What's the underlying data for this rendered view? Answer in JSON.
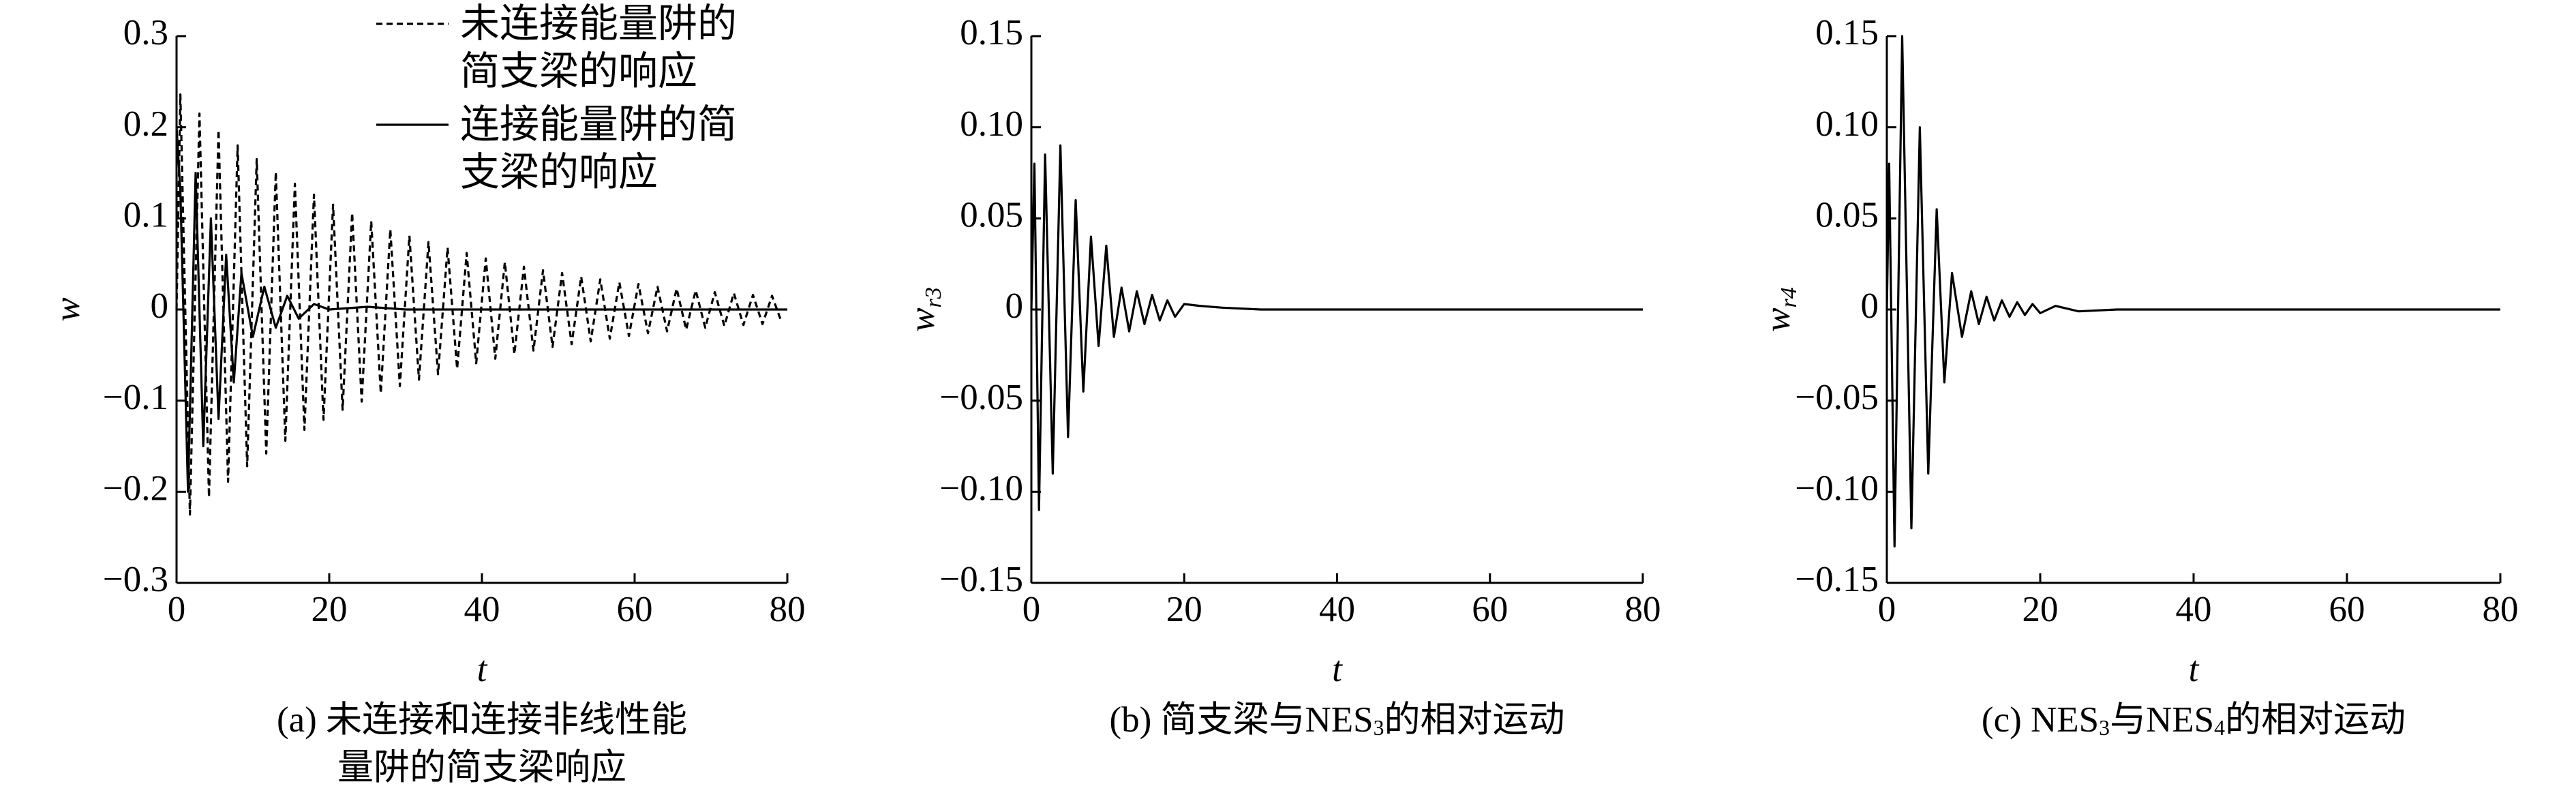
{
  "chart_data": [
    {
      "type": "line",
      "ylabel": "w",
      "xlabel": "t",
      "caption": [
        {
          "text": "(a) 未连接和连接非线性能量阱的简支梁响应"
        }
      ],
      "xlim": [
        0,
        80
      ],
      "xticks": [
        0,
        20,
        40,
        60,
        80
      ],
      "ylim": [
        -0.3,
        0.3
      ],
      "yticks": [
        {
          "value": -0.3,
          "label": "−0.3"
        },
        {
          "value": -0.2,
          "label": "−0.2"
        },
        {
          "value": -0.1,
          "label": "−0.1"
        },
        0,
        0.1,
        0.2,
        0.3
      ],
      "series": [
        {
          "name": "未连接能量阱的简支梁的响应",
          "color": "#000000",
          "linestyle": "dashed",
          "x": [
            0,
            0.5,
            1.75,
            3,
            4.25,
            5.5,
            6.75,
            8,
            9.25,
            10.5,
            11.75,
            13,
            14.25,
            15.5,
            16.75,
            18,
            19.25,
            20.5,
            21.75,
            23,
            24.25,
            25.5,
            26.75,
            28,
            29.25,
            30.5,
            31.75,
            33,
            34.25,
            35.5,
            36.75,
            38,
            39.25,
            40.5,
            41.75,
            43,
            44.25,
            45.5,
            46.75,
            48,
            49.25,
            50.5,
            51.75,
            53,
            54.25,
            55.5,
            56.75,
            58,
            59.25,
            60.5,
            61.75,
            63,
            64.25,
            65.5,
            66.75,
            68,
            69.25,
            70.5,
            71.75,
            73,
            74.25,
            75.5,
            76.75,
            78,
            79.25
          ],
          "values": [
            0,
            0.236,
            -0.225,
            0.215,
            -0.206,
            0.197,
            -0.189,
            0.18,
            -0.172,
            0.165,
            -0.158,
            0.151,
            -0.144,
            0.138,
            -0.132,
            0.126,
            -0.121,
            0.115,
            -0.11,
            0.106,
            -0.101,
            0.097,
            -0.092,
            0.088,
            -0.084,
            0.081,
            -0.077,
            0.074,
            -0.071,
            0.068,
            -0.065,
            0.062,
            -0.059,
            0.056,
            -0.054,
            0.052,
            -0.049,
            0.047,
            -0.045,
            0.043,
            -0.041,
            0.04,
            -0.038,
            0.036,
            -0.035,
            0.033,
            -0.032,
            0.03,
            -0.029,
            0.028,
            -0.026,
            0.025,
            -0.024,
            0.023,
            -0.022,
            0.021,
            -0.02,
            0.019,
            -0.018,
            0.018,
            -0.017,
            0.016,
            -0.016,
            0.015,
            -0.014
          ]
        },
        {
          "name": "连接能量阱的简支梁的响应",
          "color": "#000000",
          "linestyle": "solid",
          "x": [
            0,
            0.5,
            1.5,
            2.5,
            3.5,
            4.5,
            5.5,
            6.5,
            7.5,
            8.5,
            10,
            11.5,
            13,
            14.5,
            16,
            18,
            20,
            25,
            30,
            80
          ],
          "values": [
            0.2,
            0.13,
            -0.2,
            0.15,
            -0.15,
            0.1,
            -0.12,
            0.06,
            -0.08,
            0.04,
            -0.03,
            0.025,
            -0.02,
            0.015,
            -0.01,
            0.006,
            0,
            0.003,
            0,
            0
          ]
        }
      ]
    },
    {
      "type": "line",
      "ylabel": "w",
      "ylabel_sub": "r3",
      "xlabel": "t",
      "caption": [
        {
          "text": "(b) 简支梁与NES"
        },
        {
          "text": "3",
          "sub": true
        },
        {
          "text": "的相对运动"
        }
      ],
      "xlim": [
        0,
        80
      ],
      "xticks": [
        0,
        20,
        40,
        60,
        80
      ],
      "ylim": [
        -0.15,
        0.15
      ],
      "yticks": [
        {
          "value": -0.15,
          "label": "−0.15"
        },
        {
          "value": -0.1,
          "label": "−0.10"
        },
        {
          "value": -0.05,
          "label": "−0.05"
        },
        0,
        {
          "value": 0.05,
          "label": "0.05"
        },
        {
          "value": 0.1,
          "label": "0.10"
        },
        0.15
      ],
      "series": [
        {
          "color": "#000000",
          "linestyle": "solid",
          "x": [
            0,
            0.4,
            1,
            1.8,
            2.8,
            3.8,
            4.8,
            5.8,
            6.8,
            7.8,
            8.8,
            9.8,
            10.8,
            11.8,
            12.8,
            13.8,
            14.8,
            15.8,
            16.8,
            17.8,
            18.8,
            20,
            22,
            25,
            30,
            80
          ],
          "values": [
            0,
            0.08,
            -0.11,
            0.085,
            -0.09,
            0.09,
            -0.07,
            0.06,
            -0.045,
            0.04,
            -0.02,
            0.035,
            -0.015,
            0.012,
            -0.012,
            0.01,
            -0.008,
            0.008,
            -0.006,
            0.005,
            -0.004,
            0.003,
            0.002,
            0.001,
            0,
            0
          ]
        }
      ]
    },
    {
      "type": "line",
      "ylabel": "w",
      "ylabel_sub": "r4",
      "xlabel": "t",
      "caption": [
        {
          "text": "(c) NES"
        },
        {
          "text": "3",
          "sub": true
        },
        {
          "text": "与NES"
        },
        {
          "text": "4",
          "sub": true
        },
        {
          "text": "的相对运动"
        }
      ],
      "xlim": [
        0,
        80
      ],
      "xticks": [
        0,
        20,
        40,
        60,
        80
      ],
      "ylim": [
        -0.15,
        0.15
      ],
      "yticks": [
        {
          "value": -0.15,
          "label": "−0.15"
        },
        {
          "value": -0.1,
          "label": "−0.10"
        },
        {
          "value": -0.05,
          "label": "−0.05"
        },
        0,
        {
          "value": 0.05,
          "label": "0.05"
        },
        {
          "value": 0.1,
          "label": "0.10"
        },
        0.15
      ],
      "series": [
        {
          "color": "#000000",
          "linestyle": "solid",
          "x": [
            0,
            0.3,
            1,
            2,
            3.2,
            4.3,
            5.4,
            6.5,
            7.5,
            8.5,
            9.8,
            11,
            12,
            13,
            14,
            15,
            16,
            17,
            18,
            19,
            20,
            22,
            25,
            30,
            80
          ],
          "values": [
            0,
            0.08,
            -0.13,
            0.15,
            -0.12,
            0.1,
            -0.09,
            0.055,
            -0.04,
            0.02,
            -0.015,
            0.01,
            -0.008,
            0.007,
            -0.006,
            0.005,
            -0.004,
            0.004,
            -0.003,
            0.003,
            -0.002,
            0.002,
            -0.001,
            0,
            0
          ]
        }
      ]
    }
  ]
}
